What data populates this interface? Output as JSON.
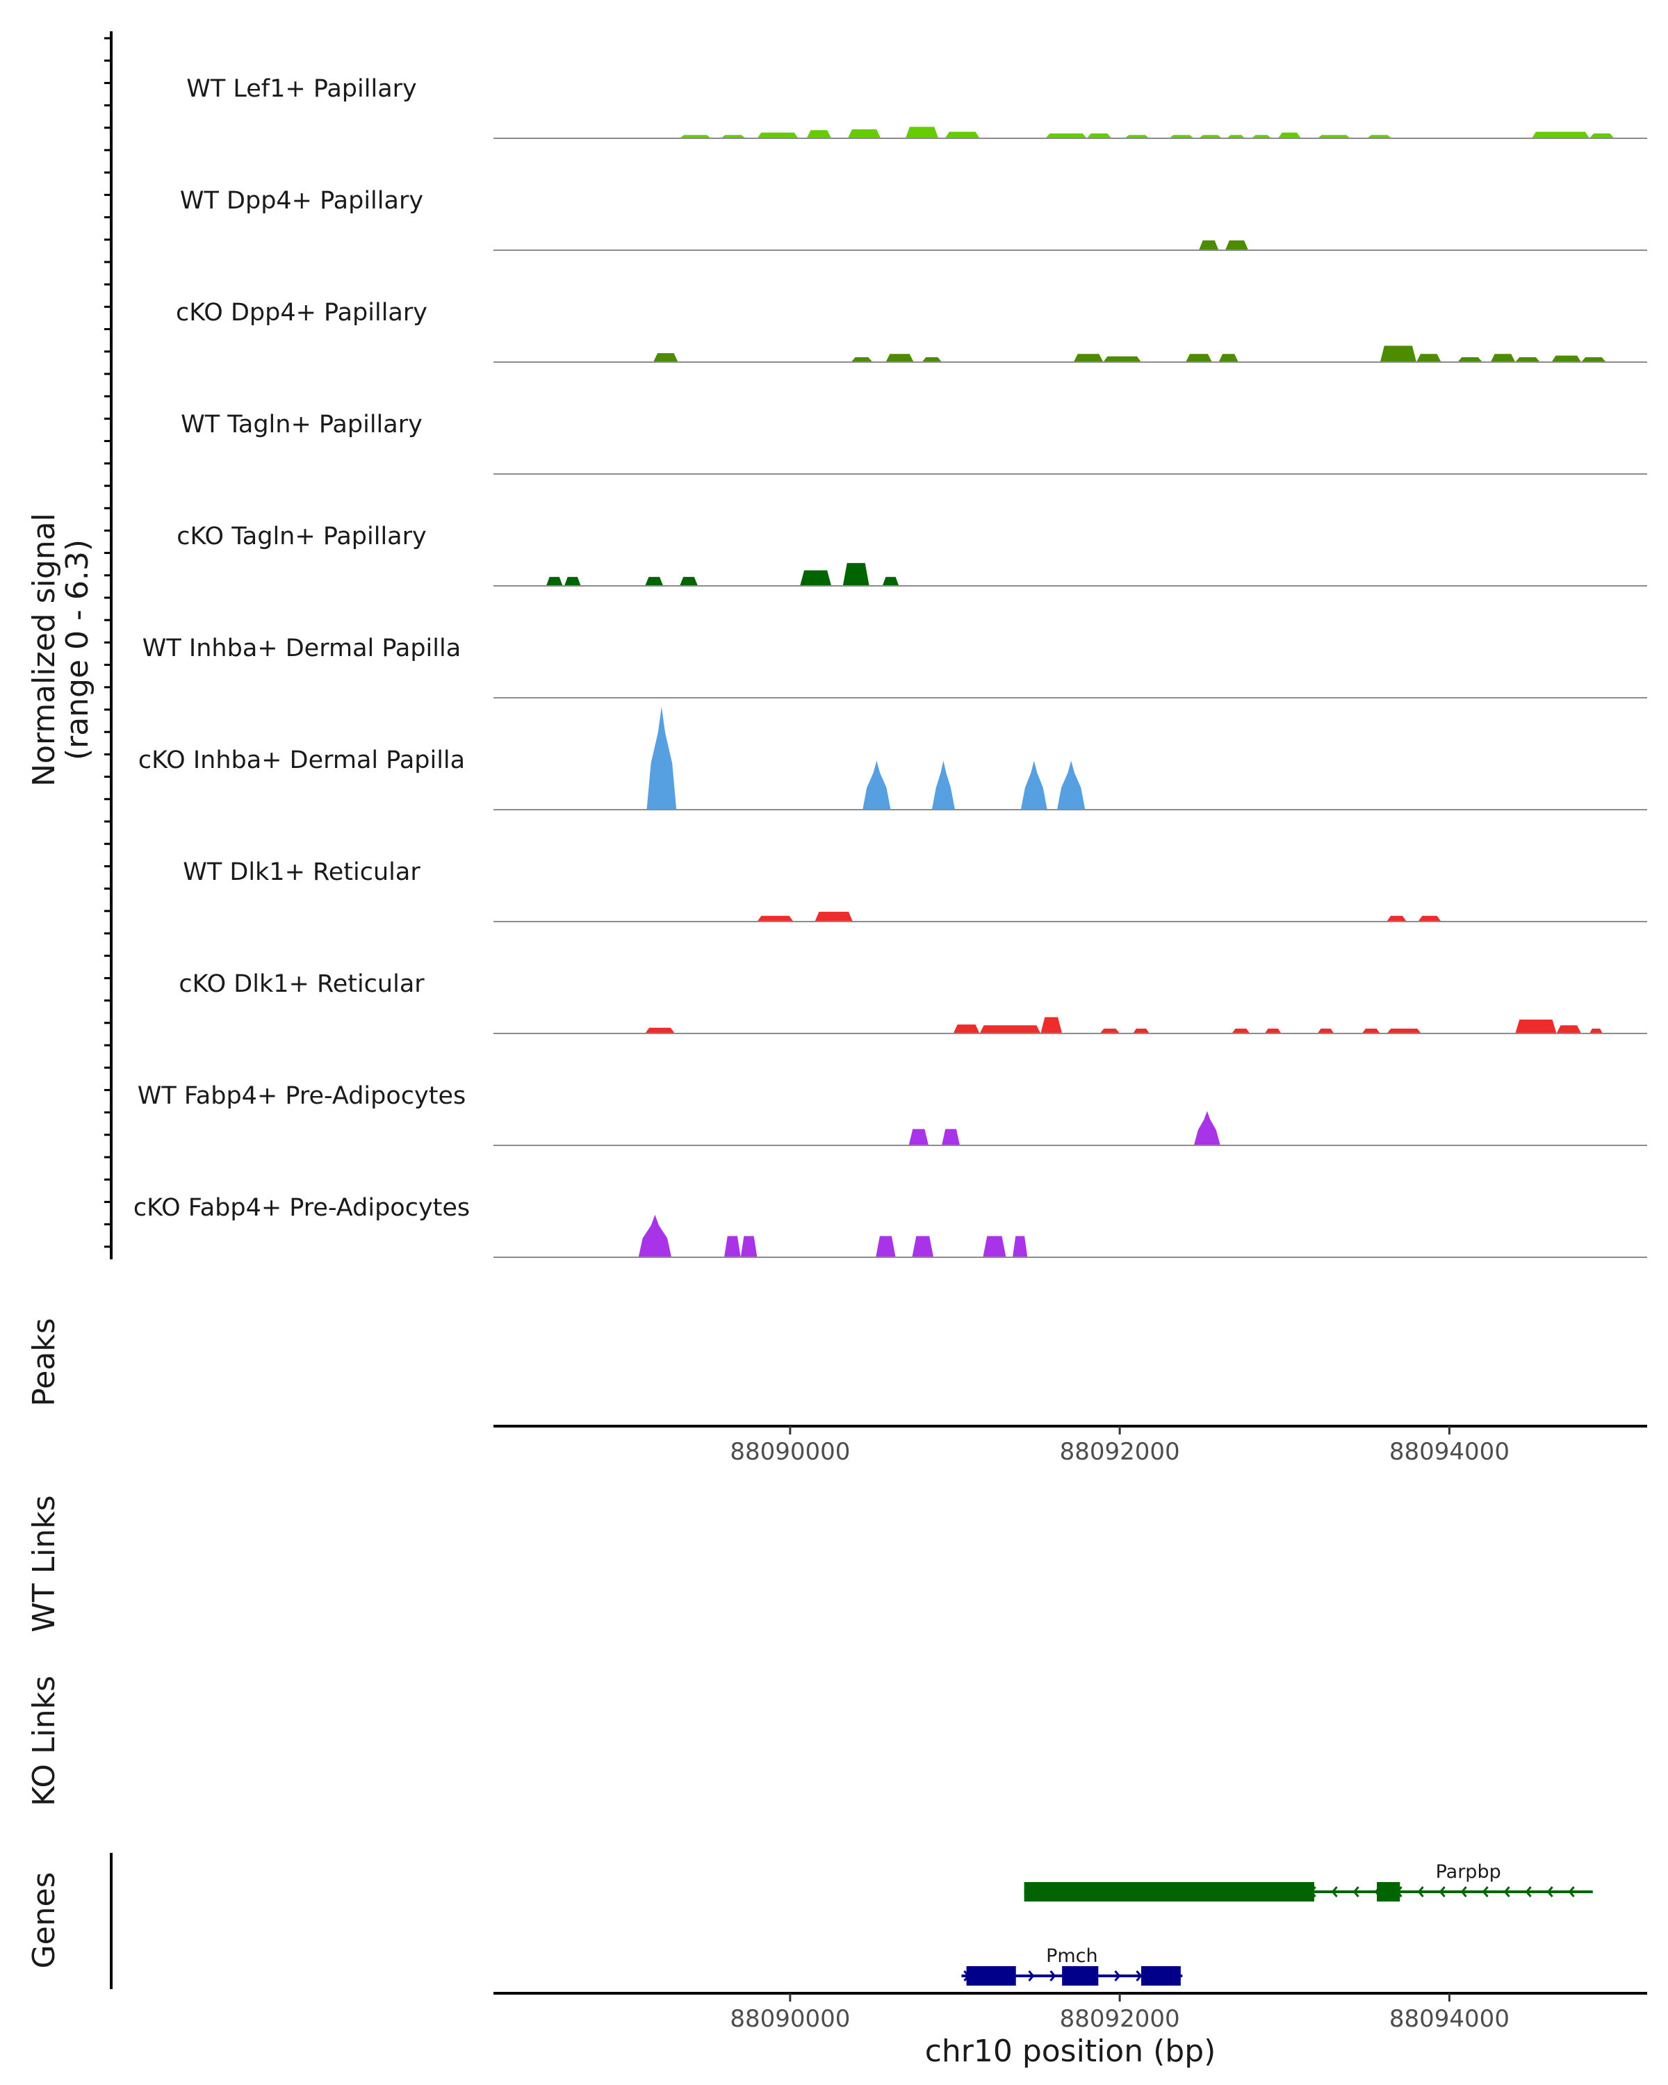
{
  "chart_data": {
    "type": "area",
    "chromosome": "chr10",
    "xlim": [
      88088200,
      88095200
    ],
    "ylim": [
      0,
      6.3
    ],
    "y_axis_title": "Normalized signal",
    "y_axis_range_label": "(range 0 - 6.3)",
    "x_axis_title": "chr10 position (bp)",
    "x_ticks": [
      {
        "value": 88090000,
        "label": "88090000"
      },
      {
        "value": 88092000,
        "label": "88092000"
      },
      {
        "value": 88094000,
        "label": "88094000"
      }
    ],
    "coverage_tracks": [
      {
        "name": "WT Lef1+ Papillary",
        "color": "#66CC00",
        "segments": [
          [
            88089330,
            88089520,
            0.2
          ],
          [
            88089580,
            88089730,
            0.2
          ],
          [
            88089800,
            88090050,
            0.35
          ],
          [
            88090100,
            88090250,
            0.5
          ],
          [
            88090350,
            88090550,
            0.55
          ],
          [
            88090700,
            88090900,
            0.7
          ],
          [
            88090940,
            88091150,
            0.4
          ],
          [
            88091550,
            88091800,
            0.3
          ],
          [
            88091800,
            88091950,
            0.3
          ],
          [
            88092030,
            88092180,
            0.2
          ],
          [
            88092300,
            88092450,
            0.2
          ],
          [
            88092480,
            88092620,
            0.2
          ],
          [
            88092650,
            88092760,
            0.2
          ],
          [
            88092800,
            88092920,
            0.2
          ],
          [
            88092960,
            88093100,
            0.35
          ],
          [
            88093200,
            88093400,
            0.2
          ],
          [
            88093500,
            88093650,
            0.2
          ],
          [
            88094500,
            88094850,
            0.4
          ],
          [
            88094850,
            88095000,
            0.3
          ]
        ]
      },
      {
        "name": "WT Dpp4+ Papillary",
        "color": "#4D8C00",
        "segments": [
          [
            88092480,
            88092600,
            0.6
          ],
          [
            88092640,
            88092780,
            0.6
          ]
        ]
      },
      {
        "name": "cKO Dpp4+ Papillary",
        "color": "#4D8C00",
        "segments": [
          [
            88089170,
            88089320,
            0.55
          ],
          [
            88090370,
            88090500,
            0.3
          ],
          [
            88090580,
            88090750,
            0.5
          ],
          [
            88090800,
            88090920,
            0.3
          ],
          [
            88091720,
            88091900,
            0.5
          ],
          [
            88091900,
            88092130,
            0.35
          ],
          [
            88092400,
            88092560,
            0.5
          ],
          [
            88092600,
            88092720,
            0.5
          ],
          [
            88093580,
            88093800,
            1.0
          ],
          [
            88093800,
            88093950,
            0.5
          ],
          [
            88094050,
            88094200,
            0.3
          ],
          [
            88094250,
            88094400,
            0.5
          ],
          [
            88094400,
            88094550,
            0.3
          ],
          [
            88094620,
            88094800,
            0.4
          ],
          [
            88094800,
            88094950,
            0.3
          ]
        ]
      },
      {
        "name": "WT Tagln+ Papillary",
        "color": "#006400",
        "segments": []
      },
      {
        "name": "cKO Tagln+ Papillary",
        "color": "#006400",
        "segments": [
          [
            88088520,
            88088620,
            0.55
          ],
          [
            88088630,
            88088730,
            0.55
          ],
          [
            88089120,
            88089230,
            0.55
          ],
          [
            88089330,
            88089440,
            0.55
          ],
          [
            88090060,
            88090250,
            0.95
          ],
          [
            88090320,
            88090480,
            1.4
          ],
          [
            88090560,
            88090660,
            0.55
          ]
        ]
      },
      {
        "name": "WT Inhba+ Dermal Papilla",
        "color": "#56A0E2",
        "segments": []
      },
      {
        "name": "cKO Inhba+ Dermal Papilla",
        "color": "#56A0E2",
        "segments": [
          [
            88089130,
            88089310,
            6.3
          ],
          [
            88090440,
            88090610,
            3.0
          ],
          [
            88090860,
            88091000,
            3.0
          ],
          [
            88091400,
            88091560,
            3.0
          ],
          [
            88091620,
            88091790,
            3.0
          ]
        ]
      },
      {
        "name": "WT Dlk1+ Reticular",
        "color": "#EE2C2C",
        "segments": [
          [
            88089800,
            88090020,
            0.35
          ],
          [
            88090150,
            88090380,
            0.6
          ],
          [
            88093620,
            88093740,
            0.35
          ],
          [
            88093810,
            88093950,
            0.35
          ]
        ]
      },
      {
        "name": "cKO Dlk1+ Reticular",
        "color": "#EE2C2C",
        "segments": [
          [
            88089120,
            88089300,
            0.35
          ],
          [
            88090990,
            88091150,
            0.55
          ],
          [
            88091150,
            88091520,
            0.5
          ],
          [
            88091520,
            88091650,
            1.0
          ],
          [
            88091880,
            88092000,
            0.3
          ],
          [
            88092080,
            88092180,
            0.3
          ],
          [
            88092680,
            88092790,
            0.3
          ],
          [
            88092880,
            88092980,
            0.3
          ],
          [
            88093200,
            88093300,
            0.3
          ],
          [
            88093470,
            88093580,
            0.3
          ],
          [
            88093620,
            88093830,
            0.3
          ],
          [
            88094400,
            88094650,
            0.85
          ],
          [
            88094650,
            88094800,
            0.5
          ],
          [
            88094850,
            88094930,
            0.3
          ]
        ]
      },
      {
        "name": "WT Fabp4+ Pre-Adipocytes",
        "color": "#A933E9",
        "segments": [
          [
            88090720,
            88090840,
            1.0
          ],
          [
            88090920,
            88091030,
            1.0
          ],
          [
            88092450,
            88092610,
            2.1
          ]
        ]
      },
      {
        "name": "cKO Fabp4+ Pre-Adipocytes",
        "color": "#A933E9",
        "segments": [
          [
            88089080,
            88089280,
            2.6
          ],
          [
            88089600,
            88089700,
            1.3
          ],
          [
            88089700,
            88089800,
            1.3
          ],
          [
            88090520,
            88090640,
            1.3
          ],
          [
            88090740,
            88090870,
            1.3
          ],
          [
            88091170,
            88091310,
            1.3
          ],
          [
            88091350,
            88091440,
            1.3
          ]
        ]
      }
    ],
    "peaks_title": "Peaks",
    "link_tracks": [
      "WT Links",
      "KO Links"
    ],
    "genes_title": "Genes",
    "genes": [
      {
        "name": "Parpbp",
        "strand": "-",
        "color": "#006400",
        "start": 88091420,
        "end": 88094870,
        "exons": [
          [
            88091420,
            88093180
          ],
          [
            88093560,
            88093700
          ]
        ]
      },
      {
        "name": "Pmch",
        "strand": "+",
        "color": "#00008B",
        "start": 88091040,
        "end": 88092380,
        "exons": [
          [
            88091070,
            88091370
          ],
          [
            88091650,
            88091870
          ],
          [
            88092130,
            88092370
          ]
        ]
      }
    ]
  }
}
